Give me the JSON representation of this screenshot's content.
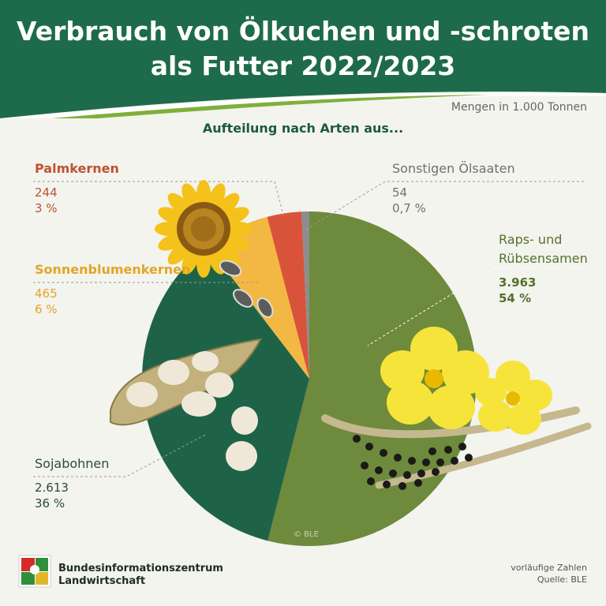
{
  "header": {
    "title_line1": "Verbrauch von Ölkuchen und -schroten",
    "title_line2": "als Futter 2022/2023",
    "units": "Mengen in 1.000 Tonnen",
    "subtitle": "Aufteilung nach Arten aus..."
  },
  "colors": {
    "header_green": "#1d6b4a",
    "raps": "#6e8a3c",
    "soja": "#1e6347",
    "sonnenblumen": "#f3b843",
    "palm": "#d9533a",
    "sonstige": "#8d8d8d"
  },
  "chart_data": {
    "type": "pie",
    "title": "Verbrauch von Ölkuchen und -schroten als Futter 2022/2023",
    "unit": "Mengen in 1.000 Tonnen",
    "slices": [
      {
        "label": "Raps- und Rübsensamen",
        "value": 3963,
        "value_label": "3.963",
        "percent_label": "54 %"
      },
      {
        "label": "Sojabohnen",
        "value": 2613,
        "value_label": "2.613",
        "percent_label": "36 %"
      },
      {
        "label": "Sonnenblumenkernen",
        "value": 465,
        "value_label": "465",
        "percent_label": "6 %"
      },
      {
        "label": "Palmkernen",
        "value": 244,
        "value_label": "244",
        "percent_label": "3 %"
      },
      {
        "label": "Sonstigen Ölsaaten",
        "value": 54,
        "value_label": "54",
        "percent_label": "0,7 %"
      }
    ]
  },
  "copyright": "© BLE",
  "footer": {
    "logo_line1": "Bundesinformationszentrum",
    "logo_line2": "Landwirtschaft",
    "note_line1": "vorläufige Zahlen",
    "note_line2": "Quelle: BLE"
  }
}
